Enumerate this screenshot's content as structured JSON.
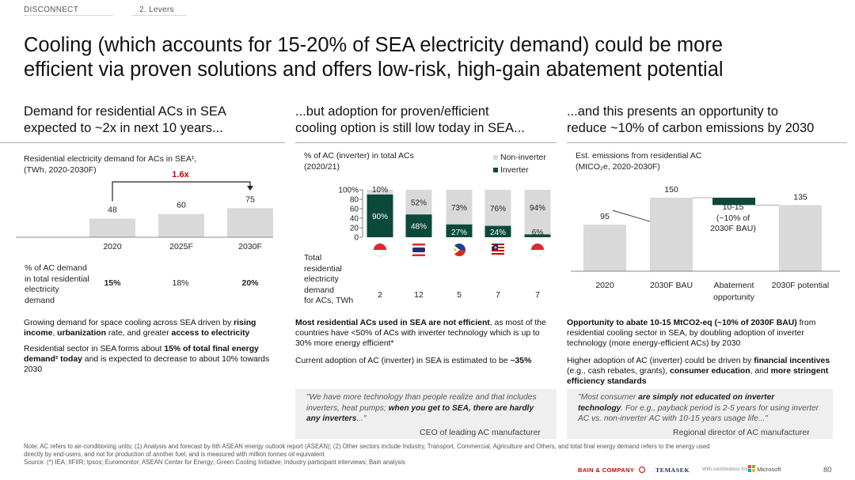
{
  "tabs": {
    "disconnect": "DISCONNECT",
    "levers": "2. Levers"
  },
  "title_line1": "Cooling (which accounts for 15-20% of SEA electricity demand) could be more",
  "title_line2": "efficient via proven solutions and offers low-risk, high-gain abatement potential",
  "col1": {
    "head1": "Demand for residential ACs in SEA",
    "head2": "expected to ~2x in next 10 years...",
    "chart_title1": "Residential electricity demand for ACs in SEA¹,",
    "chart_title2": "(TWh, 2020-2030F)",
    "growth": "1.6x",
    "share_label": [
      "% of AC demand",
      "in total residential",
      "electricity",
      "demand"
    ],
    "shares": [
      "15%",
      "18%",
      "20%"
    ],
    "p1_a": "Growing demand for space cooling across SEA driven by ",
    "p1_b": "rising income",
    ", ": "",
    "p1_c": ", ",
    "p1_d": "urbanization",
    " rate": "",
    "p1_e": " rate, and greater ",
    "p1_f": "access to electricity",
    "p2_a": "Residential sector in SEA forms about ",
    "p2_b": "15% of total final energy demand² today",
    " p2": "",
    "p2_c": " and is expected to decrease to about 10% towards 2030"
  },
  "col2": {
    "head1": "...but adoption for proven/efficient",
    "head2": "cooling option is still low today in SEA...",
    "chart_title1": "% of AC (inverter) in total ACs",
    "chart_title2": "(2020/21)",
    "legend_non": "Non-inverter",
    "legend_inv": "Inverter",
    "total_label": [
      "Total",
      "residential",
      "electricity",
      "demand",
      "for ACs, TWh"
    ],
    "totals": [
      "2",
      "12",
      "5",
      "7",
      "7"
    ],
    "p1_a": "Most residential ACs used in SEA are not efficient",
    "p1_b": ", as most of the countries have <50% of ACs with inverter technology which is up to 30% more energy efficient*",
    "p2_a": "Current adoption of AC (inverter) in SEA is estimated to be ",
    "p2_b": "~35%",
    "quote_a": "\"We have more technology than people realize and that includes inverters, heat pumps; ",
    "quote_b": "when you get to SEA, there are hardly any inverters",
    "quote_c": "...\"",
    "quote_src": "CEO of leading AC manufacturer"
  },
  "col3": {
    "head1": "...and this presents an opportunity to",
    "head2": "reduce ~10% of carbon emissions by 2030",
    "chart_title1": "Est. emissions from residential AC",
    "chart_title2": "(MtCO₂e, 2020-2030F)",
    "abatement_label": [
      "10-15",
      "(~10% of",
      "2030F BAU)"
    ],
    "p1_a": "Opportunity to abate 10-15 MtCO2-eq (~10% of 2030F BAU)",
    "p1_b": " from residential cooling sector in SEA, by doubling adoption of inverter technology (more energy-efficient ACs) by 2030",
    "p2_a": "Higher adoption of AC (inverter) could be driven by ",
    "p2_b": "financial incentives",
    "p2_c": " (e.g., cash rebates, grants), ",
    "p2_d": "consumer education",
    ", and": "",
    "p2_e": ", and ",
    "p2_f": "more stringent efficiency standards",
    "quote_a": "\"Most consumer ",
    "quote_b": "are simply not educated on inverter technology",
    "quote_c": ". For e.g., payback period is 2-5 years for using inverter AC vs. non-inverter AC with 10-15 years usage life...\"",
    "quote_src": "Regional director of AC manufacturer"
  },
  "notes": {
    "line1": "Note: AC refers to air-conditioning units; (1) Analysis and forecast by 6th ASEAN energy outlook report (ASEAN); (2) Other sectors include Industry, Transport, Commercial, Agriculture and Others, and total final energy demand refers to the energy used",
    "line2": "directly by end-users, and not for production of another fuel, and is measured with million tonnes oil equivalent",
    "line3": "Source: (*) IEA; IIFIIR; Ipsos; Euromonitor; ASEAN Center for Energy; Green Cooling Initiative; Industry participant interviews; Bain analysis"
  },
  "footer": {
    "bain": "BAIN & COMPANY",
    "temasek": "TEMASEK",
    "with": "With contributions from",
    "microsoft": "Microsoft",
    "page": "80"
  },
  "colors": {
    "gray_bar": "#d9d9d9",
    "inverter": "#0b4a3b",
    "accent_red": "#cc0000"
  },
  "chart_data": [
    {
      "type": "bar",
      "categories": [
        "2020",
        "2025F",
        "2030F"
      ],
      "values": [
        48,
        60,
        75
      ]
    },
    {
      "type": "bar",
      "stacked": true,
      "x_ticks": [
        "100%",
        "80",
        "60",
        "40",
        "20",
        "0"
      ],
      "categories": [
        "Singapore-flag",
        "Thailand-flag",
        "Philippines-flag",
        "Malaysia-flag",
        "Indonesia-flag"
      ],
      "series": [
        {
          "name": "Inverter",
          "values": [
            90,
            48,
            27,
            24,
            6
          ]
        },
        {
          "name": "Non-inverter",
          "values": [
            10,
            52,
            73,
            76,
            94
          ]
        }
      ]
    },
    {
      "type": "bar",
      "waterfall": true,
      "categories": [
        "2020",
        "2030F BAU",
        "Abatement opportunity",
        "2030F potential"
      ],
      "values": [
        95,
        150,
        -15,
        135
      ]
    }
  ]
}
